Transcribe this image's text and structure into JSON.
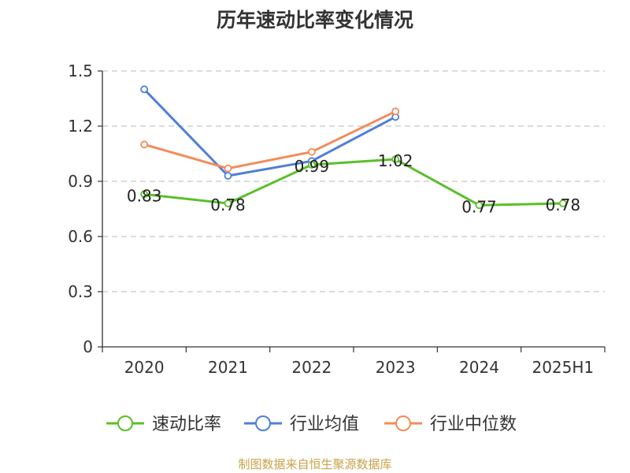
{
  "title": "历年速动比率变化情况",
  "source": "制图数据来自恒生聚源数据库",
  "chart_data": {
    "type": "line",
    "categories": [
      "2020",
      "2021",
      "2022",
      "2023",
      "2024",
      "2025H1"
    ],
    "ylim": [
      0,
      1.5
    ],
    "yticks": [
      "0",
      "0.3",
      "0.6",
      "0.9",
      "1.2",
      "1.5"
    ],
    "ytick_values": [
      0,
      0.3,
      0.6,
      0.9,
      1.2,
      1.5
    ],
    "grid": true,
    "legend_position": "bottom",
    "series": [
      {
        "name": "速动比率",
        "color": "#5bbf2a",
        "values": [
          0.83,
          0.78,
          0.99,
          1.02,
          0.77,
          0.78
        ],
        "labels": [
          "0.83",
          "0.78",
          "0.99",
          "1.02",
          "0.77",
          "0.78"
        ]
      },
      {
        "name": "行业均值",
        "color": "#4f7fd8",
        "values": [
          1.4,
          0.93,
          1.01,
          1.25,
          null,
          null
        ]
      },
      {
        "name": "行业中位数",
        "color": "#f28c5a",
        "values": [
          1.1,
          0.97,
          1.06,
          1.28,
          null,
          null
        ]
      }
    ]
  }
}
